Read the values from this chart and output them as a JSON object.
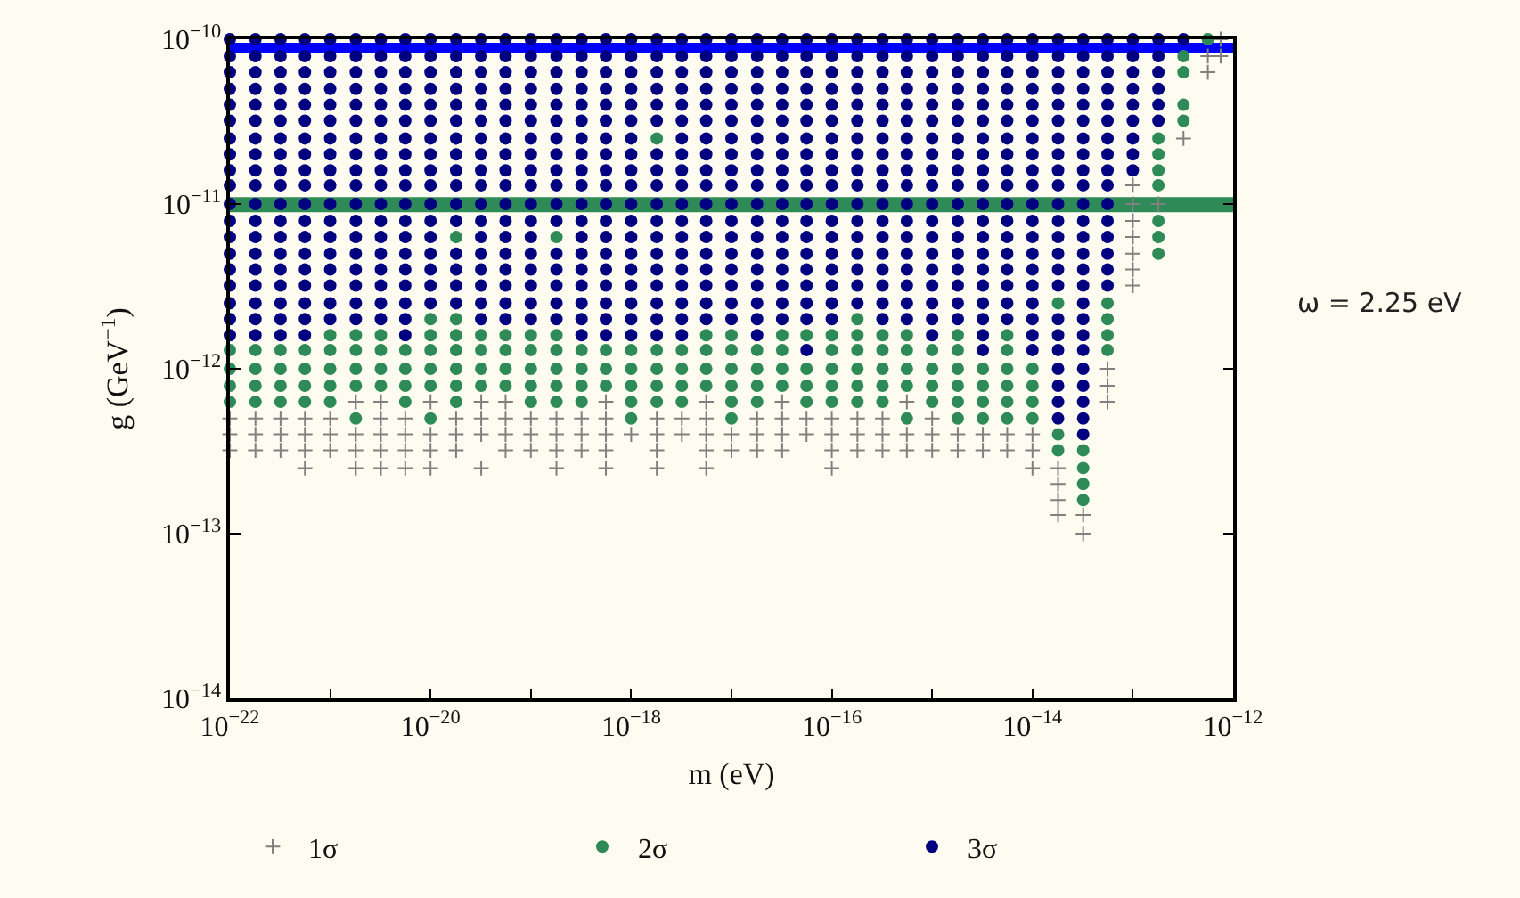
{
  "chart_data": {
    "type": "scatter",
    "xlabel": "m (eV)",
    "ylabel": "g (GeV$^{−1}$)",
    "log": "xy",
    "legend": "bottom",
    "annotations": [
      "ω = 2.25 eV"
    ],
    "xlim": [
      1e-22,
      1e-12
    ],
    "ylim": [
      1e-14,
      1e-10
    ],
    "xticks": [
      {
        "value": 1e-22,
        "label": "10$^{−22}$"
      },
      {
        "value": 1e-21,
        "label": null
      },
      {
        "value": 1e-20,
        "label": "10$^{−20}$"
      },
      {
        "value": 1e-19,
        "label": null
      },
      {
        "value": 1e-18,
        "label": "10$^{−18}$"
      },
      {
        "value": 1e-17,
        "label": null
      },
      {
        "value": 1e-16,
        "label": "10$^{−16}$"
      },
      {
        "value": 1e-15,
        "label": null
      },
      {
        "value": 1e-14,
        "label": "10$^{−14}$"
      },
      {
        "value": 1e-13,
        "label": null
      },
      {
        "value": 1e-12,
        "label": "10$^{−12}$"
      }
    ],
    "yticks": [
      {
        "value": 1e-14,
        "label": "10$^{−14}$"
      },
      {
        "value": 1e-13,
        "label": "10$^{−13}$"
      },
      {
        "value": 1e-12,
        "label": "10$^{−12}$"
      },
      {
        "value": 1e-11,
        "label": "10$^{−11}$"
      },
      {
        "value": 1e-10,
        "label": "10$^{−10}$"
      }
    ],
    "bands": [
      {
        "axis": "y",
        "from": 8.3e-11,
        "to": 9.5e-11,
        "color": "#0000ff"
      },
      {
        "axis": "y",
        "from": 8.9e-12,
        "to": 1.1e-11,
        "color": "#2e8b57"
      }
    ],
    "series": [
      {
        "name": "1σ",
        "color": "#808080",
        "marker": "cross",
        "x": [
          7.5e-13,
          5.6e-13,
          7.5e-13,
          5.6e-13,
          3.2e-13,
          1e-13,
          1e-13,
          1.8e-13,
          1e-13,
          1e-13,
          1e-13,
          1e-13,
          1e-13,
          5.6e-14,
          5.6e-14,
          1.8e-21,
          3.2e-21,
          1e-20,
          3.2e-20,
          5.6e-20,
          5.6e-19,
          5.6e-18,
          3.2e-17,
          5.6e-16,
          5.6e-14,
          1e-22,
          1.8e-22,
          3.2e-22,
          5.6e-22,
          1e-21,
          3.2e-21,
          5.6e-21,
          1.8e-20,
          3.2e-20,
          5.6e-20,
          1e-19,
          1.8e-19,
          3.2e-19,
          5.6e-19,
          1.8e-18,
          3.2e-18,
          5.6e-18,
          1.8e-17,
          3.2e-17,
          5.6e-17,
          1e-16,
          1.8e-16,
          3.2e-16,
          1e-15,
          1e-22,
          1.8e-22,
          3.2e-22,
          5.6e-22,
          1e-21,
          1.8e-21,
          3.2e-21,
          5.6e-21,
          1e-20,
          1.8e-20,
          3.2e-20,
          5.6e-20,
          1e-19,
          1.8e-19,
          3.2e-19,
          5.6e-19,
          1e-18,
          1.8e-18,
          3.2e-18,
          5.6e-18,
          1e-17,
          1.8e-17,
          3.2e-17,
          5.6e-17,
          1e-16,
          1.8e-16,
          3.2e-16,
          5.6e-16,
          1e-15,
          1.8e-15,
          3.2e-15,
          5.6e-15,
          1e-14,
          1e-22,
          1.8e-22,
          3.2e-22,
          5.6e-22,
          1e-21,
          1.8e-21,
          3.2e-21,
          5.6e-21,
          1e-20,
          1.8e-20,
          5.6e-20,
          1e-19,
          1.8e-19,
          3.2e-19,
          5.6e-19,
          1.8e-18,
          5.6e-18,
          1e-17,
          1.8e-17,
          3.2e-17,
          1e-16,
          1.8e-16,
          3.2e-16,
          5.6e-16,
          1e-15,
          1.8e-15,
          3.2e-15,
          5.6e-15,
          1e-14,
          5.6e-22,
          1.8e-21,
          3.2e-21,
          5.6e-21,
          1e-20,
          3.2e-20,
          1.8e-19,
          5.6e-19,
          1.8e-18,
          5.6e-18,
          1e-16,
          1e-14,
          1.8e-14,
          1.8e-14,
          1.8e-14,
          1.8e-14,
          3.2e-14,
          3.2e-14
        ],
        "values": [
          1e-10,
          7.9e-11,
          7.9e-11,
          6.3e-11,
          2.5e-11,
          1.3e-11,
          1e-11,
          1e-11,
          7.9e-12,
          6.3e-12,
          5e-12,
          4e-12,
          3.2e-12,
          1e-12,
          7.9e-13,
          6.3e-13,
          6.3e-13,
          6.3e-13,
          6.3e-13,
          6.3e-13,
          6.3e-13,
          6.3e-13,
          6.3e-13,
          6.3e-13,
          6.3e-13,
          5e-13,
          5e-13,
          5e-13,
          5e-13,
          5e-13,
          5e-13,
          5e-13,
          5e-13,
          5e-13,
          5e-13,
          5e-13,
          5e-13,
          5e-13,
          5e-13,
          5e-13,
          5e-13,
          5e-13,
          5e-13,
          5e-13,
          5e-13,
          5e-13,
          5e-13,
          5e-13,
          5e-13,
          4e-13,
          4e-13,
          4e-13,
          4e-13,
          4e-13,
          4e-13,
          4e-13,
          4e-13,
          4e-13,
          4e-13,
          4e-13,
          4e-13,
          4e-13,
          4e-13,
          4e-13,
          4e-13,
          4e-13,
          4e-13,
          4e-13,
          4e-13,
          4e-13,
          4e-13,
          4e-13,
          4e-13,
          4e-13,
          4e-13,
          4e-13,
          4e-13,
          4e-13,
          4e-13,
          4e-13,
          4e-13,
          4e-13,
          3.2e-13,
          3.2e-13,
          3.2e-13,
          3.2e-13,
          3.2e-13,
          3.2e-13,
          3.2e-13,
          3.2e-13,
          3.2e-13,
          3.2e-13,
          3.2e-13,
          3.2e-13,
          3.2e-13,
          3.2e-13,
          3.2e-13,
          3.2e-13,
          3.2e-13,
          3.2e-13,
          3.2e-13,
          3.2e-13,
          3.2e-13,
          3.2e-13,
          3.2e-13,
          3.2e-13,
          3.2e-13,
          3.2e-13,
          3.2e-13,
          3.2e-13,
          3.2e-13,
          2.5e-13,
          2.5e-13,
          2.5e-13,
          2.5e-13,
          2.5e-13,
          2.5e-13,
          2.5e-13,
          2.5e-13,
          2.5e-13,
          2.5e-13,
          2.5e-13,
          2.5e-13,
          2.5e-13,
          2e-13,
          1.6e-13,
          1.3e-13,
          1.3e-13,
          1e-13
        ]
      },
      {
        "name": "2σ",
        "color": "#2e8b57",
        "marker": "circle",
        "x": [
          5.6e-13,
          3.2e-13,
          3.2e-13,
          3.2e-13,
          3.2e-13,
          1.8e-18,
          1.8e-13,
          1.8e-13,
          1.8e-13,
          1.8e-13,
          1.8e-13,
          1.8e-20,
          1.8e-19,
          1.8e-13,
          1.8e-13,
          1.8e-14,
          5.6e-14,
          1e-20,
          1.8e-20,
          1.8e-16,
          5.6e-14,
          1e-21,
          1.8e-21,
          3.2e-21,
          1e-20,
          1.8e-20,
          3.2e-20,
          5.6e-20,
          1e-19,
          1.8e-19,
          5.6e-18,
          1e-17,
          3.2e-17,
          5.6e-17,
          1e-16,
          1.8e-16,
          3.2e-16,
          5.6e-16,
          1.8e-15,
          5.6e-15,
          5.6e-14,
          1e-22,
          1.8e-22,
          3.2e-22,
          5.6e-22,
          1e-21,
          1.8e-21,
          3.2e-21,
          5.6e-21,
          1e-20,
          1.8e-20,
          3.2e-20,
          5.6e-20,
          1e-19,
          1.8e-19,
          3.2e-19,
          5.6e-19,
          1e-18,
          1.8e-18,
          3.2e-18,
          5.6e-18,
          1e-17,
          1.8e-17,
          3.2e-17,
          1e-16,
          1.8e-16,
          3.2e-16,
          5.6e-16,
          1e-15,
          1.8e-15,
          5.6e-15,
          5.6e-14,
          1e-22,
          1.8e-22,
          3.2e-22,
          5.6e-22,
          1e-21,
          1.8e-21,
          3.2e-21,
          5.6e-21,
          1e-20,
          1.8e-20,
          3.2e-20,
          5.6e-20,
          1e-19,
          1.8e-19,
          3.2e-19,
          5.6e-19,
          1e-18,
          1.8e-18,
          3.2e-18,
          5.6e-18,
          1e-17,
          1.8e-17,
          3.2e-17,
          5.6e-17,
          1e-16,
          1.8e-16,
          3.2e-16,
          5.6e-16,
          1e-15,
          1.8e-15,
          3.2e-15,
          5.6e-15,
          1e-14,
          1e-22,
          1.8e-22,
          3.2e-22,
          5.6e-22,
          1e-21,
          1.8e-21,
          3.2e-21,
          5.6e-21,
          1e-20,
          1.8e-20,
          3.2e-20,
          5.6e-20,
          1e-19,
          1.8e-19,
          3.2e-19,
          5.6e-19,
          1e-18,
          1.8e-18,
          3.2e-18,
          5.6e-18,
          1e-17,
          1.8e-17,
          3.2e-17,
          5.6e-17,
          1e-16,
          1.8e-16,
          3.2e-16,
          5.6e-16,
          1e-15,
          1.8e-15,
          3.2e-15,
          5.6e-15,
          1e-14,
          1e-22,
          1.8e-22,
          3.2e-22,
          5.6e-22,
          1e-21,
          5.6e-21,
          1.8e-20,
          1e-19,
          1.8e-19,
          3.2e-19,
          1e-18,
          1.8e-18,
          3.2e-18,
          1e-17,
          1.8e-17,
          5.6e-17,
          1e-16,
          1.8e-16,
          3.2e-16,
          1e-15,
          1.8e-15,
          3.2e-15,
          5.6e-15,
          1e-14,
          1.8e-21,
          1e-20,
          1e-18,
          1e-17,
          5.6e-16,
          1.8e-15,
          3.2e-15,
          5.6e-15,
          1e-14,
          1.8e-14,
          1.8e-14,
          3.2e-14,
          3.2e-14,
          3.2e-14,
          3.2e-14
        ],
        "values": [
          1e-10,
          7.9e-11,
          6.3e-11,
          4e-11,
          3.2e-11,
          2.5e-11,
          2.5e-11,
          2e-11,
          1.6e-11,
          1.3e-11,
          7.9e-12,
          6.3e-12,
          6.3e-12,
          6.3e-12,
          5e-12,
          2.5e-12,
          2.5e-12,
          2e-12,
          2e-12,
          2e-12,
          2e-12,
          1.6e-12,
          1.6e-12,
          1.6e-12,
          1.6e-12,
          1.6e-12,
          1.6e-12,
          1.6e-12,
          1.6e-12,
          1.6e-12,
          1.6e-12,
          1.6e-12,
          1.6e-12,
          1.6e-12,
          1.6e-12,
          1.6e-12,
          1.6e-12,
          1.6e-12,
          1.6e-12,
          1.6e-12,
          1.6e-12,
          1.3e-12,
          1.3e-12,
          1.3e-12,
          1.3e-12,
          1.3e-12,
          1.3e-12,
          1.3e-12,
          1.3e-12,
          1.3e-12,
          1.3e-12,
          1.3e-12,
          1.3e-12,
          1.3e-12,
          1.3e-12,
          1.3e-12,
          1.3e-12,
          1.3e-12,
          1.3e-12,
          1.3e-12,
          1.3e-12,
          1.3e-12,
          1.3e-12,
          1.3e-12,
          1.3e-12,
          1.3e-12,
          1.3e-12,
          1.3e-12,
          1.3e-12,
          1.3e-12,
          1.3e-12,
          1.3e-12,
          1e-12,
          1e-12,
          1e-12,
          1e-12,
          1e-12,
          1e-12,
          1e-12,
          1e-12,
          1e-12,
          1e-12,
          1e-12,
          1e-12,
          1e-12,
          1e-12,
          1e-12,
          1e-12,
          1e-12,
          1e-12,
          1e-12,
          1e-12,
          1e-12,
          1e-12,
          1e-12,
          1e-12,
          1e-12,
          1e-12,
          1e-12,
          1e-12,
          1e-12,
          1e-12,
          1e-12,
          1e-12,
          1e-12,
          7.9e-13,
          7.9e-13,
          7.9e-13,
          7.9e-13,
          7.9e-13,
          7.9e-13,
          7.9e-13,
          7.9e-13,
          7.9e-13,
          7.9e-13,
          7.9e-13,
          7.9e-13,
          7.9e-13,
          7.9e-13,
          7.9e-13,
          7.9e-13,
          7.9e-13,
          7.9e-13,
          7.9e-13,
          7.9e-13,
          7.9e-13,
          7.9e-13,
          7.9e-13,
          7.9e-13,
          7.9e-13,
          7.9e-13,
          7.9e-13,
          7.9e-13,
          7.9e-13,
          7.9e-13,
          7.9e-13,
          7.9e-13,
          7.9e-13,
          6.3e-13,
          6.3e-13,
          6.3e-13,
          6.3e-13,
          6.3e-13,
          6.3e-13,
          6.3e-13,
          6.3e-13,
          6.3e-13,
          6.3e-13,
          6.3e-13,
          6.3e-13,
          6.3e-13,
          6.3e-13,
          6.3e-13,
          6.3e-13,
          6.3e-13,
          6.3e-13,
          6.3e-13,
          6.3e-13,
          6.3e-13,
          6.3e-13,
          6.3e-13,
          6.3e-13,
          5e-13,
          5e-13,
          5e-13,
          5e-13,
          5e-13,
          5e-13,
          5e-13,
          5e-13,
          5e-13,
          4e-13,
          3.2e-13,
          3.2e-13,
          2.5e-13,
          2e-13,
          1.6e-13
        ]
      },
      {
        "name": "3σ",
        "color": "#000080",
        "marker": "circle",
        "x": [
          1e-22,
          1.8e-22,
          3.2e-22,
          5.6e-22,
          1e-21,
          1.8e-21,
          3.2e-21,
          5.6e-21,
          1e-20,
          1.8e-20,
          3.2e-20,
          5.6e-20,
          1e-19,
          1.8e-19,
          3.2e-19,
          5.6e-19,
          1e-18,
          1.8e-18,
          3.2e-18,
          5.6e-18,
          1e-17,
          1.8e-17,
          3.2e-17,
          5.6e-17,
          1e-16,
          1.8e-16,
          3.2e-16,
          5.6e-16,
          1e-15,
          1.8e-15,
          3.2e-15,
          5.6e-15,
          1e-14,
          1.8e-14,
          3.2e-14,
          5.6e-14,
          1e-13,
          1.8e-13,
          3.2e-13,
          1e-22,
          1.8e-22,
          3.2e-22,
          5.6e-22,
          1e-21,
          1.8e-21,
          3.2e-21,
          5.6e-21,
          1e-20,
          1.8e-20,
          3.2e-20,
          5.6e-20,
          1e-19,
          1.8e-19,
          3.2e-19,
          5.6e-19,
          1e-18,
          1.8e-18,
          3.2e-18,
          5.6e-18,
          1e-17,
          1.8e-17,
          3.2e-17,
          5.6e-17,
          1e-16,
          1.8e-16,
          3.2e-16,
          5.6e-16,
          1e-15,
          1.8e-15,
          3.2e-15,
          5.6e-15,
          1e-14,
          1.8e-14,
          3.2e-14,
          5.6e-14,
          1e-13,
          1.8e-13,
          1e-22,
          1.8e-22,
          3.2e-22,
          5.6e-22,
          1e-21,
          1.8e-21,
          3.2e-21,
          5.6e-21,
          1e-20,
          1.8e-20,
          3.2e-20,
          5.6e-20,
          1e-19,
          1.8e-19,
          3.2e-19,
          5.6e-19,
          1e-18,
          1.8e-18,
          3.2e-18,
          5.6e-18,
          1e-17,
          1.8e-17,
          3.2e-17,
          5.6e-17,
          1e-16,
          1.8e-16,
          3.2e-16,
          5.6e-16,
          1e-15,
          1.8e-15,
          3.2e-15,
          5.6e-15,
          1e-14,
          1.8e-14,
          3.2e-14,
          5.6e-14,
          1e-13,
          1.8e-13,
          1e-22,
          1.8e-22,
          3.2e-22,
          5.6e-22,
          1e-21,
          1.8e-21,
          3.2e-21,
          5.6e-21,
          1e-20,
          1.8e-20,
          3.2e-20,
          5.6e-20,
          1e-19,
          1.8e-19,
          3.2e-19,
          5.6e-19,
          1e-18,
          1.8e-18,
          3.2e-18,
          5.6e-18,
          1e-17,
          1.8e-17,
          3.2e-17,
          5.6e-17,
          1e-16,
          1.8e-16,
          3.2e-16,
          5.6e-16,
          1e-15,
          1.8e-15,
          3.2e-15,
          5.6e-15,
          1e-14,
          1.8e-14,
          3.2e-14,
          5.6e-14,
          1e-13,
          1.8e-13,
          1e-22,
          1.8e-22,
          3.2e-22,
          5.6e-22,
          1e-21,
          1.8e-21,
          3.2e-21,
          5.6e-21,
          1e-20,
          1.8e-20,
          3.2e-20,
          5.6e-20,
          1e-19,
          1.8e-19,
          3.2e-19,
          5.6e-19,
          1e-18,
          1.8e-18,
          3.2e-18,
          5.6e-18,
          1e-17,
          1.8e-17,
          3.2e-17,
          5.6e-17,
          1e-16,
          1.8e-16,
          3.2e-16,
          5.6e-16,
          1e-15,
          1.8e-15,
          3.2e-15,
          5.6e-15,
          1e-14,
          1.8e-14,
          3.2e-14,
          5.6e-14,
          1e-13,
          1.8e-13,
          1e-22,
          1.8e-22,
          3.2e-22,
          5.6e-22,
          1e-21,
          1.8e-21,
          3.2e-21,
          5.6e-21,
          1e-20,
          1.8e-20,
          3.2e-20,
          5.6e-20,
          1e-19,
          1.8e-19,
          3.2e-19,
          5.6e-19,
          1e-18,
          1.8e-18,
          3.2e-18,
          5.6e-18,
          1e-17,
          1.8e-17,
          3.2e-17,
          5.6e-17,
          1e-16,
          1.8e-16,
          3.2e-16,
          5.6e-16,
          1e-15,
          1.8e-15,
          3.2e-15,
          5.6e-15,
          1e-14,
          1.8e-14,
          3.2e-14,
          5.6e-14,
          1e-13,
          1.8e-13,
          1e-22,
          1.8e-22,
          3.2e-22,
          5.6e-22,
          1e-21,
          1.8e-21,
          3.2e-21,
          5.6e-21,
          1e-20,
          1.8e-20,
          3.2e-20,
          5.6e-20,
          1e-19,
          1.8e-19,
          3.2e-19,
          5.6e-19,
          1e-18,
          3.2e-18,
          5.6e-18,
          1e-17,
          1.8e-17,
          3.2e-17,
          5.6e-17,
          1e-16,
          1.8e-16,
          3.2e-16,
          5.6e-16,
          1e-15,
          1.8e-15,
          3.2e-15,
          5.6e-15,
          1e-14,
          1.8e-14,
          3.2e-14,
          5.6e-14,
          1e-13,
          1e-22,
          1.8e-22,
          3.2e-22,
          5.6e-22,
          1e-21,
          1.8e-21,
          3.2e-21,
          5.6e-21,
          1e-20,
          1.8e-20,
          3.2e-20,
          5.6e-20,
          1e-19,
          1.8e-19,
          3.2e-19,
          5.6e-19,
          1e-18,
          1.8e-18,
          3.2e-18,
          5.6e-18,
          1e-17,
          1.8e-17,
          3.2e-17,
          5.6e-17,
          1e-16,
          1.8e-16,
          3.2e-16,
          5.6e-16,
          1e-15,
          1.8e-15,
          3.2e-15,
          5.6e-15,
          1e-14,
          1.8e-14,
          3.2e-14,
          5.6e-14,
          1e-13,
          1e-22,
          1.8e-22,
          3.2e-22,
          5.6e-22,
          1e-21,
          1.8e-21,
          3.2e-21,
          5.6e-21,
          1e-20,
          1.8e-20,
          3.2e-20,
          5.6e-20,
          1e-19,
          1.8e-19,
          3.2e-19,
          5.6e-19,
          1e-18,
          1.8e-18,
          3.2e-18,
          5.6e-18,
          1e-17,
          1.8e-17,
          3.2e-17,
          5.6e-17,
          1e-16,
          1.8e-16,
          3.2e-16,
          5.6e-16,
          1e-15,
          1.8e-15,
          3.2e-15,
          5.6e-15,
          1e-14,
          1.8e-14,
          3.2e-14,
          5.6e-14,
          1e-13,
          1e-22,
          1.8e-22,
          3.2e-22,
          5.6e-22,
          1e-21,
          1.8e-21,
          3.2e-21,
          5.6e-21,
          1e-20,
          1.8e-20,
          3.2e-20,
          5.6e-20,
          1e-19,
          1.8e-19,
          3.2e-19,
          5.6e-19,
          1e-18,
          1.8e-18,
          3.2e-18,
          5.6e-18,
          1e-17,
          1.8e-17,
          3.2e-17,
          5.6e-17,
          1e-16,
          1.8e-16,
          3.2e-16,
          5.6e-16,
          1e-15,
          1.8e-15,
          3.2e-15,
          5.6e-15,
          1e-14,
          1.8e-14,
          3.2e-14,
          5.6e-14,
          1e-22,
          1.8e-22,
          3.2e-22,
          5.6e-22,
          1e-21,
          1.8e-21,
          3.2e-21,
          5.6e-21,
          1e-20,
          1.8e-20,
          3.2e-20,
          5.6e-20,
          1e-19,
          1.8e-19,
          3.2e-19,
          5.6e-19,
          1e-18,
          1.8e-18,
          3.2e-18,
          5.6e-18,
          1e-17,
          1.8e-17,
          3.2e-17,
          5.6e-17,
          1e-16,
          1.8e-16,
          3.2e-16,
          5.6e-16,
          1e-15,
          1.8e-15,
          3.2e-15,
          5.6e-15,
          1e-14,
          1.8e-14,
          3.2e-14,
          5.6e-14,
          1e-22,
          1.8e-22,
          3.2e-22,
          5.6e-22,
          1e-21,
          1.8e-21,
          3.2e-21,
          5.6e-21,
          1e-20,
          1.8e-20,
          3.2e-20,
          5.6e-20,
          1e-19,
          1.8e-19,
          3.2e-19,
          5.6e-19,
          1e-18,
          1.8e-18,
          3.2e-18,
          5.6e-18,
          1e-17,
          1.8e-17,
          3.2e-17,
          5.6e-17,
          1e-16,
          1.8e-16,
          3.2e-16,
          5.6e-16,
          1e-15,
          1.8e-15,
          3.2e-15,
          5.6e-15,
          1e-14,
          1.8e-14,
          3.2e-14,
          5.6e-14,
          1e-22,
          1.8e-22,
          3.2e-22,
          5.6e-22,
          1e-21,
          1.8e-21,
          3.2e-21,
          5.6e-21,
          1e-20,
          3.2e-20,
          5.6e-20,
          1e-19,
          3.2e-19,
          5.6e-19,
          1e-18,
          1.8e-18,
          3.2e-18,
          5.6e-18,
          1e-17,
          1.8e-17,
          3.2e-17,
          5.6e-17,
          1e-16,
          1.8e-16,
          3.2e-16,
          5.6e-16,
          1e-15,
          1.8e-15,
          3.2e-15,
          5.6e-15,
          1e-14,
          1.8e-14,
          3.2e-14,
          5.6e-14,
          1e-22,
          1.8e-22,
          3.2e-22,
          5.6e-22,
          1e-21,
          1.8e-21,
          3.2e-21,
          5.6e-21,
          1e-20,
          1.8e-20,
          3.2e-20,
          5.6e-20,
          1e-19,
          1.8e-19,
          3.2e-19,
          5.6e-19,
          1e-18,
          1.8e-18,
          3.2e-18,
          5.6e-18,
          1e-17,
          1.8e-17,
          3.2e-17,
          5.6e-17,
          1e-16,
          1.8e-16,
          3.2e-16,
          5.6e-16,
          1e-15,
          1.8e-15,
          3.2e-15,
          5.6e-15,
          1e-14,
          1.8e-14,
          3.2e-14,
          5.6e-14,
          1e-22,
          1.8e-22,
          3.2e-22,
          5.6e-22,
          1e-21,
          1.8e-21,
          3.2e-21,
          5.6e-21,
          1e-20,
          1.8e-20,
          3.2e-20,
          5.6e-20,
          1e-19,
          1.8e-19,
          3.2e-19,
          5.6e-19,
          1e-18,
          1.8e-18,
          3.2e-18,
          5.6e-18,
          1e-17,
          1.8e-17,
          3.2e-17,
          5.6e-17,
          1e-16,
          1.8e-16,
          3.2e-16,
          5.6e-16,
          1e-15,
          1.8e-15,
          3.2e-15,
          5.6e-15,
          1e-14,
          1.8e-14,
          3.2e-14,
          5.6e-14,
          1e-22,
          1.8e-22,
          3.2e-22,
          5.6e-22,
          1e-21,
          1.8e-21,
          3.2e-21,
          5.6e-21,
          1e-20,
          1.8e-20,
          3.2e-20,
          5.6e-20,
          1e-19,
          1.8e-19,
          3.2e-19,
          5.6e-19,
          1e-18,
          1.8e-18,
          3.2e-18,
          5.6e-18,
          1e-17,
          1.8e-17,
          3.2e-17,
          5.6e-17,
          1e-16,
          1.8e-16,
          3.2e-16,
          5.6e-16,
          1e-15,
          1.8e-15,
          3.2e-15,
          5.6e-15,
          1e-14,
          1.8e-14,
          3.2e-14,
          5.6e-14,
          1e-22,
          1.8e-22,
          3.2e-22,
          5.6e-22,
          1e-21,
          1.8e-21,
          3.2e-21,
          5.6e-21,
          1e-20,
          1.8e-20,
          3.2e-20,
          5.6e-20,
          1e-19,
          1.8e-19,
          3.2e-19,
          5.6e-19,
          1e-18,
          1.8e-18,
          3.2e-18,
          5.6e-18,
          1e-17,
          1.8e-17,
          3.2e-17,
          5.6e-17,
          1e-16,
          1.8e-16,
          3.2e-16,
          5.6e-16,
          1e-15,
          1.8e-15,
          3.2e-15,
          5.6e-15,
          1e-14,
          3.2e-14,
          1e-22,
          1.8e-22,
          3.2e-22,
          5.6e-22,
          1e-21,
          1.8e-21,
          3.2e-21,
          5.6e-21,
          3.2e-20,
          5.6e-20,
          1e-19,
          1.8e-19,
          3.2e-19,
          5.6e-19,
          1e-18,
          1.8e-18,
          3.2e-18,
          5.6e-18,
          1e-17,
          1.8e-17,
          3.2e-17,
          5.6e-17,
          1e-16,
          3.2e-16,
          5.6e-16,
          1e-15,
          1.8e-15,
          3.2e-15,
          5.6e-15,
          1e-14,
          1.8e-14,
          3.2e-14,
          1e-22,
          1.8e-22,
          3.2e-22,
          5.6e-22,
          5.6e-21,
          3.2e-19,
          5.6e-19,
          1e-18,
          1.8e-18,
          3.2e-18,
          1.8e-17,
          1e-15,
          3.2e-15,
          1e-14,
          1.8e-14,
          3.2e-14,
          5.6e-17,
          3.2e-15,
          1e-14,
          1.8e-14,
          3.2e-14,
          1.8e-14,
          3.2e-14,
          1.8e-14,
          3.2e-14,
          1.8e-14,
          3.2e-14,
          1.8e-14,
          3.2e-14,
          3.2e-14
        ],
        "values": [
          1e-10,
          1e-10,
          1e-10,
          1e-10,
          1e-10,
          1e-10,
          1e-10,
          1e-10,
          1e-10,
          1e-10,
          1e-10,
          1e-10,
          1e-10,
          1e-10,
          1e-10,
          1e-10,
          1e-10,
          1e-10,
          1e-10,
          1e-10,
          1e-10,
          1e-10,
          1e-10,
          1e-10,
          1e-10,
          1e-10,
          1e-10,
          1e-10,
          1e-10,
          1e-10,
          1e-10,
          1e-10,
          1e-10,
          1e-10,
          1e-10,
          1e-10,
          1e-10,
          1e-10,
          1e-10,
          7.9e-11,
          7.9e-11,
          7.9e-11,
          7.9e-11,
          7.9e-11,
          7.9e-11,
          7.9e-11,
          7.9e-11,
          7.9e-11,
          7.9e-11,
          7.9e-11,
          7.9e-11,
          7.9e-11,
          7.9e-11,
          7.9e-11,
          7.9e-11,
          7.9e-11,
          7.9e-11,
          7.9e-11,
          7.9e-11,
          7.9e-11,
          7.9e-11,
          7.9e-11,
          7.9e-11,
          7.9e-11,
          7.9e-11,
          7.9e-11,
          7.9e-11,
          7.9e-11,
          7.9e-11,
          7.9e-11,
          7.9e-11,
          7.9e-11,
          7.9e-11,
          7.9e-11,
          7.9e-11,
          7.9e-11,
          7.9e-11,
          6.3e-11,
          6.3e-11,
          6.3e-11,
          6.3e-11,
          6.3e-11,
          6.3e-11,
          6.3e-11,
          6.3e-11,
          6.3e-11,
          6.3e-11,
          6.3e-11,
          6.3e-11,
          6.3e-11,
          6.3e-11,
          6.3e-11,
          6.3e-11,
          6.3e-11,
          6.3e-11,
          6.3e-11,
          6.3e-11,
          6.3e-11,
          6.3e-11,
          6.3e-11,
          6.3e-11,
          6.3e-11,
          6.3e-11,
          6.3e-11,
          6.3e-11,
          6.3e-11,
          6.3e-11,
          6.3e-11,
          6.3e-11,
          6.3e-11,
          6.3e-11,
          6.3e-11,
          6.3e-11,
          6.3e-11,
          6.3e-11,
          5e-11,
          5e-11,
          5e-11,
          5e-11,
          5e-11,
          5e-11,
          5e-11,
          5e-11,
          5e-11,
          5e-11,
          5e-11,
          5e-11,
          5e-11,
          5e-11,
          5e-11,
          5e-11,
          5e-11,
          5e-11,
          5e-11,
          5e-11,
          5e-11,
          5e-11,
          5e-11,
          5e-11,
          5e-11,
          5e-11,
          5e-11,
          5e-11,
          5e-11,
          5e-11,
          5e-11,
          5e-11,
          5e-11,
          5e-11,
          5e-11,
          5e-11,
          5e-11,
          5e-11,
          4e-11,
          4e-11,
          4e-11,
          4e-11,
          4e-11,
          4e-11,
          4e-11,
          4e-11,
          4e-11,
          4e-11,
          4e-11,
          4e-11,
          4e-11,
          4e-11,
          4e-11,
          4e-11,
          4e-11,
          4e-11,
          4e-11,
          4e-11,
          4e-11,
          4e-11,
          4e-11,
          4e-11,
          4e-11,
          4e-11,
          4e-11,
          4e-11,
          4e-11,
          4e-11,
          4e-11,
          4e-11,
          4e-11,
          4e-11,
          4e-11,
          4e-11,
          4e-11,
          4e-11,
          3.2e-11,
          3.2e-11,
          3.2e-11,
          3.2e-11,
          3.2e-11,
          3.2e-11,
          3.2e-11,
          3.2e-11,
          3.2e-11,
          3.2e-11,
          3.2e-11,
          3.2e-11,
          3.2e-11,
          3.2e-11,
          3.2e-11,
          3.2e-11,
          3.2e-11,
          3.2e-11,
          3.2e-11,
          3.2e-11,
          3.2e-11,
          3.2e-11,
          3.2e-11,
          3.2e-11,
          3.2e-11,
          3.2e-11,
          3.2e-11,
          3.2e-11,
          3.2e-11,
          3.2e-11,
          3.2e-11,
          3.2e-11,
          3.2e-11,
          3.2e-11,
          3.2e-11,
          3.2e-11,
          3.2e-11,
          3.2e-11,
          2.5e-11,
          2.5e-11,
          2.5e-11,
          2.5e-11,
          2.5e-11,
          2.5e-11,
          2.5e-11,
          2.5e-11,
          2.5e-11,
          2.5e-11,
          2.5e-11,
          2.5e-11,
          2.5e-11,
          2.5e-11,
          2.5e-11,
          2.5e-11,
          2.5e-11,
          2.5e-11,
          2.5e-11,
          2.5e-11,
          2.5e-11,
          2.5e-11,
          2.5e-11,
          2.5e-11,
          2.5e-11,
          2.5e-11,
          2.5e-11,
          2.5e-11,
          2.5e-11,
          2.5e-11,
          2.5e-11,
          2.5e-11,
          2.5e-11,
          2.5e-11,
          2.5e-11,
          2.5e-11,
          2e-11,
          2e-11,
          2e-11,
          2e-11,
          2e-11,
          2e-11,
          2e-11,
          2e-11,
          2e-11,
          2e-11,
          2e-11,
          2e-11,
          2e-11,
          2e-11,
          2e-11,
          2e-11,
          2e-11,
          2e-11,
          2e-11,
          2e-11,
          2e-11,
          2e-11,
          2e-11,
          2e-11,
          2e-11,
          2e-11,
          2e-11,
          2e-11,
          2e-11,
          2e-11,
          2e-11,
          2e-11,
          2e-11,
          2e-11,
          2e-11,
          2e-11,
          2e-11,
          1.6e-11,
          1.6e-11,
          1.6e-11,
          1.6e-11,
          1.6e-11,
          1.6e-11,
          1.6e-11,
          1.6e-11,
          1.6e-11,
          1.6e-11,
          1.6e-11,
          1.6e-11,
          1.6e-11,
          1.6e-11,
          1.6e-11,
          1.6e-11,
          1.6e-11,
          1.6e-11,
          1.6e-11,
          1.6e-11,
          1.6e-11,
          1.6e-11,
          1.6e-11,
          1.6e-11,
          1.6e-11,
          1.6e-11,
          1.6e-11,
          1.6e-11,
          1.6e-11,
          1.6e-11,
          1.6e-11,
          1.6e-11,
          1.6e-11,
          1.6e-11,
          1.6e-11,
          1.6e-11,
          1.6e-11,
          1.3e-11,
          1.3e-11,
          1.3e-11,
          1.3e-11,
          1.3e-11,
          1.3e-11,
          1.3e-11,
          1.3e-11,
          1.3e-11,
          1.3e-11,
          1.3e-11,
          1.3e-11,
          1.3e-11,
          1.3e-11,
          1.3e-11,
          1.3e-11,
          1.3e-11,
          1.3e-11,
          1.3e-11,
          1.3e-11,
          1.3e-11,
          1.3e-11,
          1.3e-11,
          1.3e-11,
          1.3e-11,
          1.3e-11,
          1.3e-11,
          1.3e-11,
          1.3e-11,
          1.3e-11,
          1.3e-11,
          1.3e-11,
          1.3e-11,
          1.3e-11,
          1.3e-11,
          1.3e-11,
          1e-11,
          1e-11,
          1e-11,
          1e-11,
          1e-11,
          1e-11,
          1e-11,
          1e-11,
          1e-11,
          1e-11,
          1e-11,
          1e-11,
          1e-11,
          1e-11,
          1e-11,
          1e-11,
          1e-11,
          1e-11,
          1e-11,
          1e-11,
          1e-11,
          1e-11,
          1e-11,
          1e-11,
          1e-11,
          1e-11,
          1e-11,
          1e-11,
          1e-11,
          1e-11,
          1e-11,
          1e-11,
          1e-11,
          1e-11,
          1e-11,
          1e-11,
          7.9e-12,
          7.9e-12,
          7.9e-12,
          7.9e-12,
          7.9e-12,
          7.9e-12,
          7.9e-12,
          7.9e-12,
          7.9e-12,
          7.9e-12,
          7.9e-12,
          7.9e-12,
          7.9e-12,
          7.9e-12,
          7.9e-12,
          7.9e-12,
          7.9e-12,
          7.9e-12,
          7.9e-12,
          7.9e-12,
          7.9e-12,
          7.9e-12,
          7.9e-12,
          7.9e-12,
          7.9e-12,
          7.9e-12,
          7.9e-12,
          7.9e-12,
          7.9e-12,
          7.9e-12,
          7.9e-12,
          7.9e-12,
          7.9e-12,
          7.9e-12,
          7.9e-12,
          7.9e-12,
          6.3e-12,
          6.3e-12,
          6.3e-12,
          6.3e-12,
          6.3e-12,
          6.3e-12,
          6.3e-12,
          6.3e-12,
          6.3e-12,
          6.3e-12,
          6.3e-12,
          6.3e-12,
          6.3e-12,
          6.3e-12,
          6.3e-12,
          6.3e-12,
          6.3e-12,
          6.3e-12,
          6.3e-12,
          6.3e-12,
          6.3e-12,
          6.3e-12,
          6.3e-12,
          6.3e-12,
          6.3e-12,
          6.3e-12,
          6.3e-12,
          6.3e-12,
          6.3e-12,
          6.3e-12,
          6.3e-12,
          6.3e-12,
          6.3e-12,
          6.3e-12,
          5e-12,
          5e-12,
          5e-12,
          5e-12,
          5e-12,
          5e-12,
          5e-12,
          5e-12,
          5e-12,
          5e-12,
          5e-12,
          5e-12,
          5e-12,
          5e-12,
          5e-12,
          5e-12,
          5e-12,
          5e-12,
          5e-12,
          5e-12,
          5e-12,
          5e-12,
          5e-12,
          5e-12,
          5e-12,
          5e-12,
          5e-12,
          5e-12,
          5e-12,
          5e-12,
          5e-12,
          5e-12,
          5e-12,
          5e-12,
          5e-12,
          5e-12,
          4e-12,
          4e-12,
          4e-12,
          4e-12,
          4e-12,
          4e-12,
          4e-12,
          4e-12,
          4e-12,
          4e-12,
          4e-12,
          4e-12,
          4e-12,
          4e-12,
          4e-12,
          4e-12,
          4e-12,
          4e-12,
          4e-12,
          4e-12,
          4e-12,
          4e-12,
          4e-12,
          4e-12,
          4e-12,
          4e-12,
          4e-12,
          4e-12,
          4e-12,
          4e-12,
          4e-12,
          4e-12,
          4e-12,
          4e-12,
          4e-12,
          4e-12,
          3.2e-12,
          3.2e-12,
          3.2e-12,
          3.2e-12,
          3.2e-12,
          3.2e-12,
          3.2e-12,
          3.2e-12,
          3.2e-12,
          3.2e-12,
          3.2e-12,
          3.2e-12,
          3.2e-12,
          3.2e-12,
          3.2e-12,
          3.2e-12,
          3.2e-12,
          3.2e-12,
          3.2e-12,
          3.2e-12,
          3.2e-12,
          3.2e-12,
          3.2e-12,
          3.2e-12,
          3.2e-12,
          3.2e-12,
          3.2e-12,
          3.2e-12,
          3.2e-12,
          3.2e-12,
          3.2e-12,
          3.2e-12,
          3.2e-12,
          3.2e-12,
          3.2e-12,
          3.2e-12,
          2.5e-12,
          2.5e-12,
          2.5e-12,
          2.5e-12,
          2.5e-12,
          2.5e-12,
          2.5e-12,
          2.5e-12,
          2.5e-12,
          2.5e-12,
          2.5e-12,
          2.5e-12,
          2.5e-12,
          2.5e-12,
          2.5e-12,
          2.5e-12,
          2.5e-12,
          2.5e-12,
          2.5e-12,
          2.5e-12,
          2.5e-12,
          2.5e-12,
          2.5e-12,
          2.5e-12,
          2.5e-12,
          2.5e-12,
          2.5e-12,
          2.5e-12,
          2.5e-12,
          2.5e-12,
          2.5e-12,
          2.5e-12,
          2.5e-12,
          2.5e-12,
          2e-12,
          2e-12,
          2e-12,
          2e-12,
          2e-12,
          2e-12,
          2e-12,
          2e-12,
          2e-12,
          2e-12,
          2e-12,
          2e-12,
          2e-12,
          2e-12,
          2e-12,
          2e-12,
          2e-12,
          2e-12,
          2e-12,
          2e-12,
          2e-12,
          2e-12,
          2e-12,
          2e-12,
          2e-12,
          2e-12,
          2e-12,
          2e-12,
          2e-12,
          2e-12,
          2e-12,
          2e-12,
          1.6e-12,
          1.6e-12,
          1.6e-12,
          1.6e-12,
          1.6e-12,
          1.6e-12,
          1.6e-12,
          1.6e-12,
          1.6e-12,
          1.6e-12,
          1.6e-12,
          1.6e-12,
          1.6e-12,
          1.6e-12,
          1.6e-12,
          1.6e-12,
          1.3e-12,
          1.3e-12,
          1.3e-12,
          1.3e-12,
          1.3e-12,
          1e-12,
          1e-12,
          7.9e-13,
          7.9e-13,
          6.3e-13,
          6.3e-13,
          5e-13,
          5e-13,
          4e-13
        ]
      }
    ]
  }
}
